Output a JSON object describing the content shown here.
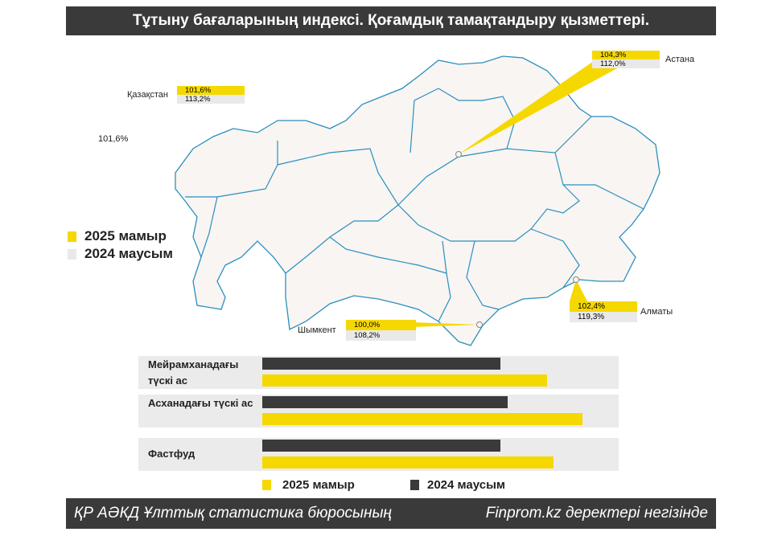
{
  "title": "Тұтыну бағаларының индексі. Қоғамдық тамақтандыру қызметтері.",
  "colors": {
    "y2025": "#f5d800",
    "y2024": "#3a3a3a",
    "map_fill": "#f8f5f2",
    "map_stroke": "#2a8fbf"
  },
  "map": {
    "stray_label": "101,6%",
    "legend": {
      "a": "2025 мамыр",
      "b": "2024 маусым"
    },
    "cities": [
      {
        "name": "Қазақстан",
        "v2025": "101,6%",
        "v2024": "113,2%"
      },
      {
        "name": "Астана",
        "v2025": "104,3%",
        "v2024": "112,0%"
      },
      {
        "name": "Алматы",
        "v2025": "102,4%",
        "v2024": "119,3%"
      },
      {
        "name": "Шымкент",
        "v2025": "100,0%",
        "v2024": "108,2%"
      }
    ]
  },
  "chart_data": {
    "type": "bar",
    "orientation": "horizontal",
    "note": "relative bar lengths as fraction of track (no axis shown)",
    "categories": [
      "Мейрамханадағы түскі ас",
      "Асханадағы түскі ас",
      "Фастфуд"
    ],
    "series": [
      {
        "name": "2024 маусым",
        "values": [
          0.67,
          0.69,
          0.67
        ]
      },
      {
        "name": "2025 мамыр",
        "values": [
          0.8,
          0.9,
          0.82
        ]
      }
    ],
    "legend": [
      "2025 мамыр",
      "2024 маусым"
    ]
  },
  "footer": {
    "left": "ҚР АӘКД Ұлттық статистика бюросының",
    "right": "Finprom.kz деректері негізінде"
  }
}
